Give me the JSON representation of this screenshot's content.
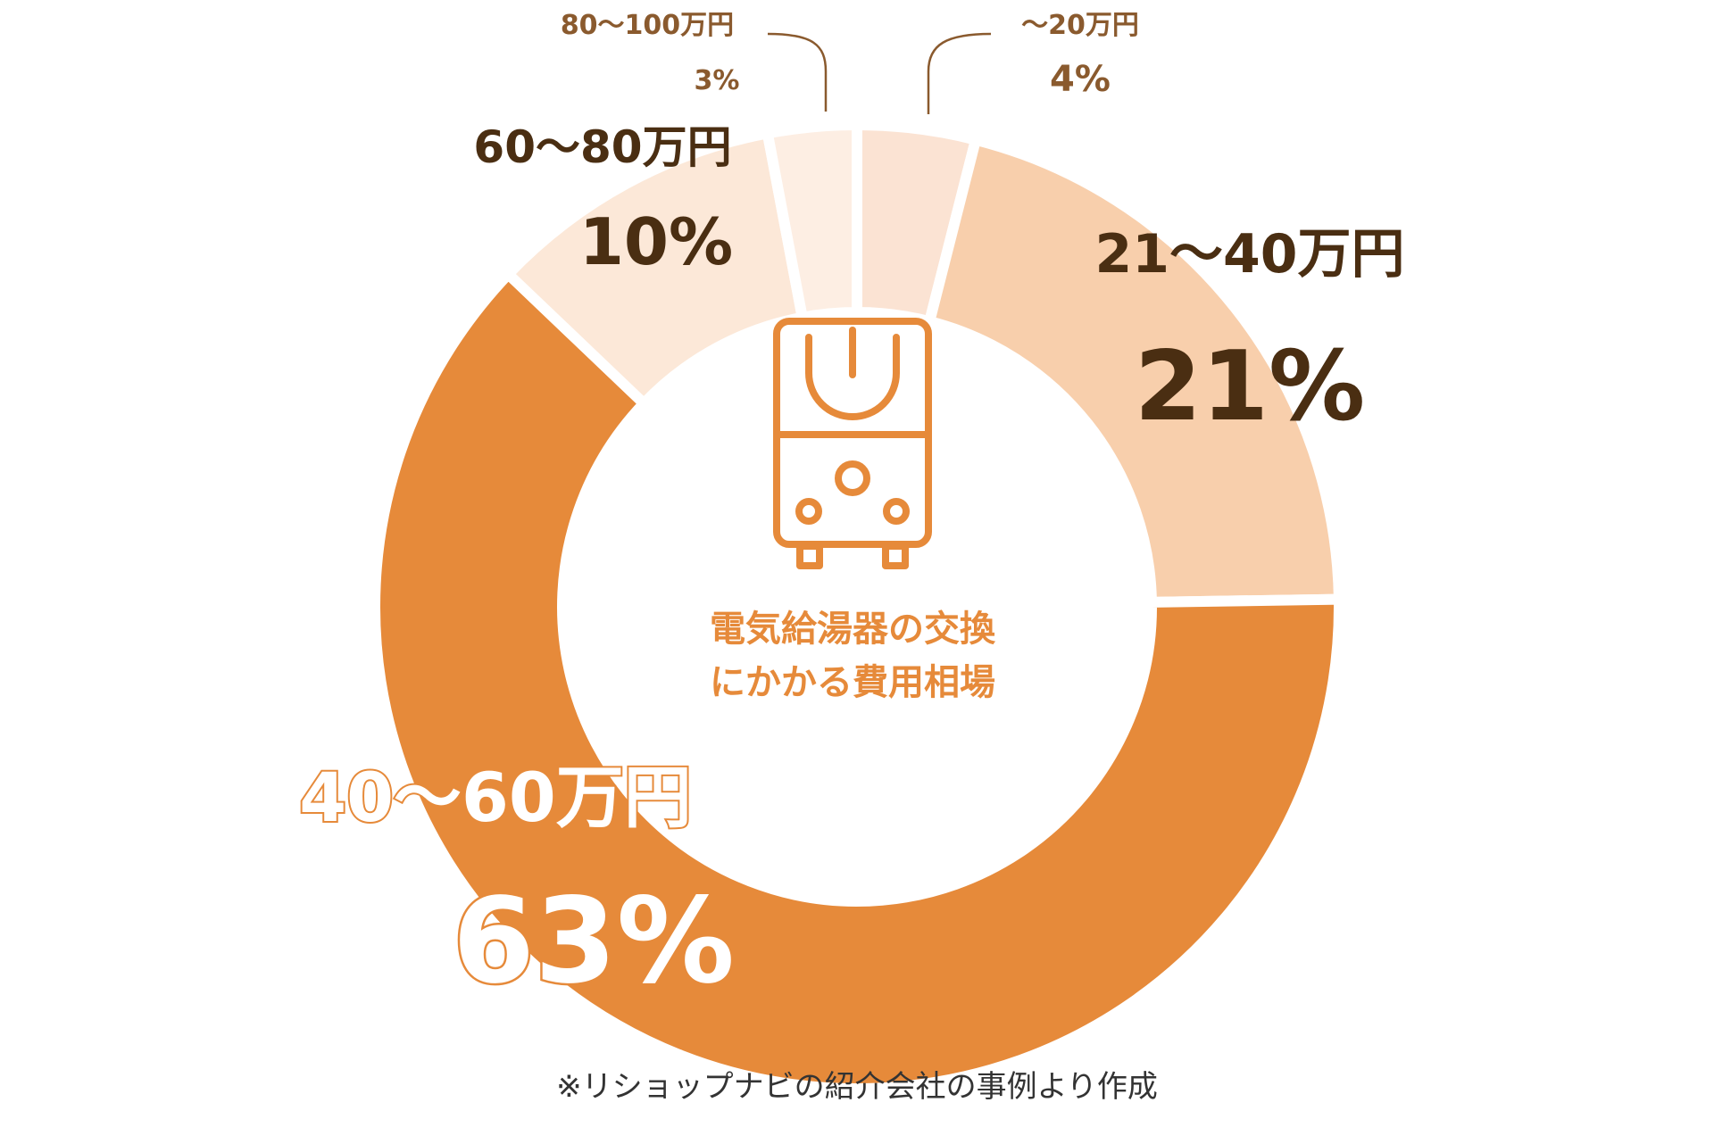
{
  "chart_data": {
    "type": "pie",
    "variant": "donut",
    "center_title_lines": [
      "電気給湯器の交換",
      "にかかる費用相場"
    ],
    "slices": [
      {
        "name": "〜20万円",
        "value": 4,
        "value_label": "4%",
        "color": "#fbe3d3"
      },
      {
        "name": "21〜40万円",
        "value": 21,
        "value_label": "21%",
        "color": "#f8cfac"
      },
      {
        "name": "40〜60万円",
        "value": 63,
        "value_label": "63%",
        "color": "#e68a3a"
      },
      {
        "name": "60〜80万円",
        "value": 10,
        "value_label": "10%",
        "color": "#fce8d8"
      },
      {
        "name": "80〜100万円",
        "value": 3,
        "value_label": "3%",
        "color": "#fdeee3"
      }
    ],
    "legend": "none"
  },
  "footnote": "※リショップナビの紹介会社の事例より作成",
  "icons": {
    "center": "water-heater-icon"
  },
  "colors": {
    "accent": "#e68a3a",
    "label_dark": "#4a2e12",
    "label_small": "#8a5a2e"
  }
}
